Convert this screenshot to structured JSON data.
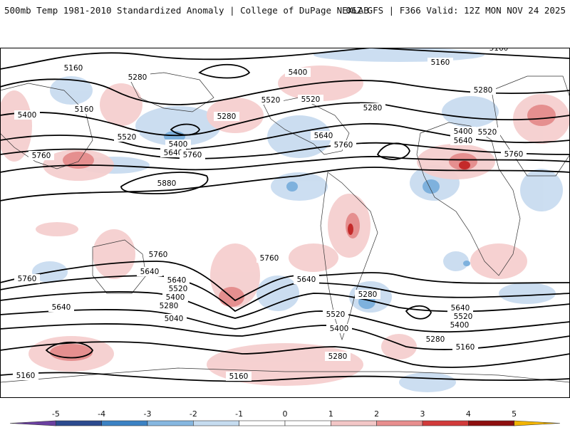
{
  "header": {
    "title": "500mb Temp 1981-2010 Standardized Anomaly | College of DuPage NEXLAB",
    "run_info": "06Z GFS | F366 Valid: 12Z MON NOV 24 2025"
  },
  "map": {
    "projection": "global",
    "contour_units": "dam",
    "contour_labels": [
      "5160",
      "5160",
      "5160",
      "5160",
      "5160",
      "5160",
      "5160",
      "5280",
      "5280",
      "5280",
      "5280",
      "5280",
      "5280",
      "5280",
      "5280",
      "5400",
      "5400",
      "5400",
      "5400",
      "5400",
      "5400",
      "5400",
      "5520",
      "5520",
      "5520",
      "5520",
      "5520",
      "5520",
      "5520",
      "5640",
      "5640",
      "5640",
      "5640",
      "5640",
      "5640",
      "5640",
      "5640",
      "5760",
      "5760",
      "5760",
      "5760",
      "5760",
      "5760",
      "5760",
      "5880",
      "5040"
    ]
  },
  "colorbar": {
    "ticks": [
      "-5",
      "-4",
      "-3",
      "-2",
      "-1",
      "0",
      "1",
      "2",
      "3",
      "4",
      "5"
    ],
    "colors": [
      "#6a3fa0",
      "#2b4a8f",
      "#3b82c4",
      "#86b7e0",
      "#c6dcf0",
      "#ffffff",
      "#ffffff",
      "#f3c7c7",
      "#e88e8e",
      "#d23a3a",
      "#8e0f0f",
      "#f2b400"
    ]
  }
}
